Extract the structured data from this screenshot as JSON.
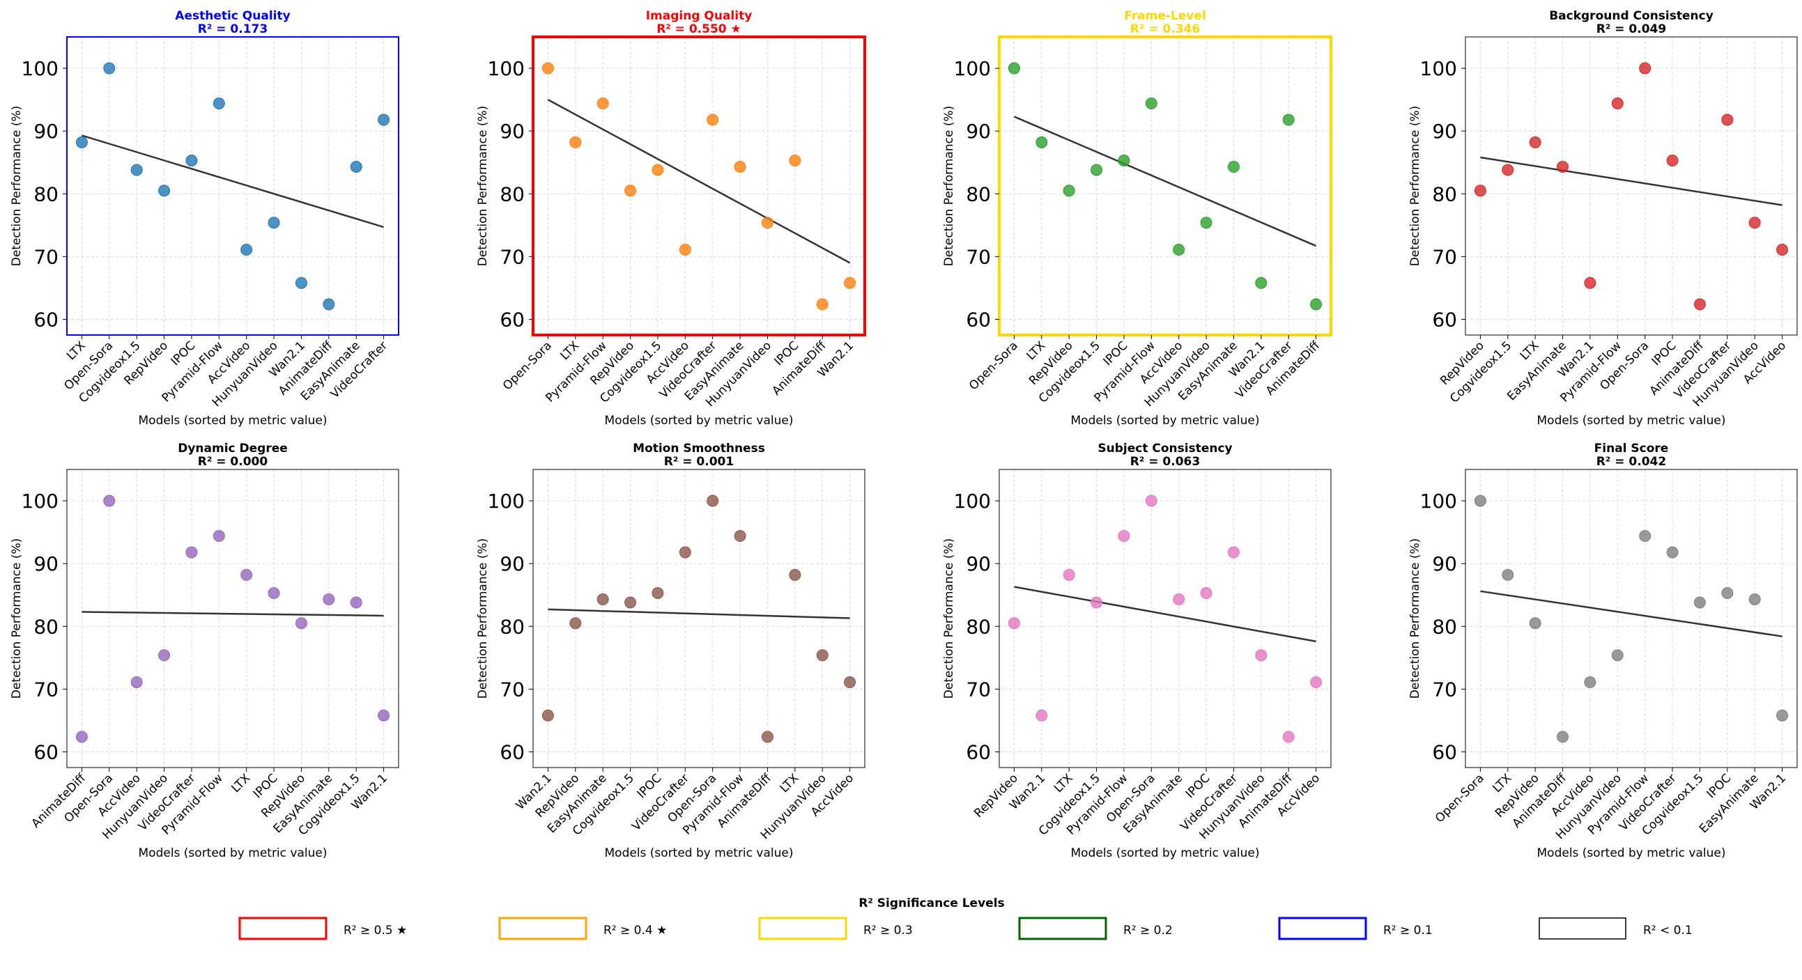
{
  "figure": {
    "legend": {
      "title": "R² Significance Levels",
      "items": [
        {
          "label": "R² ≥ 0.5 ★",
          "color": "#ff0000"
        },
        {
          "label": "R² ≥ 0.4 ★",
          "color": "#ffa500"
        },
        {
          "label": "R² ≥ 0.3",
          "color": "#ffd700"
        },
        {
          "label": "R² ≥ 0.2",
          "color": "#006400"
        },
        {
          "label": "R² ≥ 0.1",
          "color": "#0000ff"
        },
        {
          "label": "R² < 0.1",
          "color": "#000000"
        }
      ]
    }
  },
  "chart_data": [
    {
      "type": "scatter",
      "title": "Aesthetic Quality",
      "r2_label": "R² = 0.173",
      "title_color": "#0000ff",
      "frame_color": "#0000ff",
      "point_color": "#1f77b4",
      "xlabel": "Models (sorted by metric value)",
      "ylabel": "Detection Performance (%)",
      "ylim": [
        57.5,
        105
      ],
      "yticks": [
        60,
        70,
        80,
        90,
        100
      ],
      "categories": [
        "LTX",
        "Open-Sora",
        "Cogvideox1.5",
        "RepVideo",
        "IPOC",
        "Pyramid-Flow",
        "AccVideo",
        "HunyuanVideo",
        "Wan2.1",
        "AnimateDiff",
        "EasyAnimate",
        "VideoCrafter"
      ],
      "values": [
        88.2,
        100,
        83.8,
        80.5,
        85.3,
        94.4,
        71.1,
        75.4,
        65.8,
        62.4,
        84.3,
        91.8
      ],
      "trend": [
        89.3,
        74.7
      ]
    },
    {
      "type": "scatter",
      "title": "Imaging Quality",
      "r2_label": "R² = 0.550 ★",
      "title_color": "#ff0000",
      "frame_color": "#ff0000",
      "point_color": "#ff7f0e",
      "xlabel": "Models (sorted by metric value)",
      "ylabel": "Detection Performance (%)",
      "ylim": [
        57.5,
        105
      ],
      "yticks": [
        60,
        70,
        80,
        90,
        100
      ],
      "categories": [
        "Open-Sora",
        "LTX",
        "Pyramid-Flow",
        "RepVideo",
        "Cogvideox1.5",
        "AccVideo",
        "VideoCrafter",
        "EasyAnimate",
        "HunyuanVideo",
        "IPOC",
        "AnimateDiff",
        "Wan2.1"
      ],
      "values": [
        100,
        88.2,
        94.4,
        80.5,
        83.8,
        71.1,
        91.8,
        84.3,
        75.4,
        85.3,
        62.4,
        65.8
      ],
      "trend": [
        95.0,
        69.0
      ]
    },
    {
      "type": "scatter",
      "title": "Frame-Level",
      "r2_label": "R² = 0.346",
      "title_color": "#ffd700",
      "frame_color": "#ffd700",
      "point_color": "#2ca02c",
      "xlabel": "Models (sorted by metric value)",
      "ylabel": "Detection Performance (%)",
      "ylim": [
        57.5,
        105
      ],
      "yticks": [
        60,
        70,
        80,
        90,
        100
      ],
      "categories": [
        "Open-Sora",
        "LTX",
        "RepVideo",
        "Cogvideox1.5",
        "IPOC",
        "Pyramid-Flow",
        "AccVideo",
        "HunyuanVideo",
        "EasyAnimate",
        "Wan2.1",
        "VideoCrafter",
        "AnimateDiff"
      ],
      "values": [
        100,
        88.2,
        80.5,
        83.8,
        85.3,
        94.4,
        71.1,
        75.4,
        84.3,
        65.8,
        91.8,
        62.4
      ],
      "trend": [
        92.3,
        71.7
      ]
    },
    {
      "type": "scatter",
      "title": "Background Consistency",
      "r2_label": "R² = 0.049",
      "title_color": "#000000",
      "frame_color": "#000000",
      "point_color": "#d62728",
      "xlabel": "Models (sorted by metric value)",
      "ylabel": "Detection Performance (%)",
      "ylim": [
        57.5,
        105
      ],
      "yticks": [
        60,
        70,
        80,
        90,
        100
      ],
      "categories": [
        "RepVideo",
        "Cogvideox1.5",
        "LTX",
        "EasyAnimate",
        "Wan2.1",
        "Pyramid-Flow",
        "Open-Sora",
        "IPOC",
        "AnimateDiff",
        "VideoCrafter",
        "HunyuanVideo",
        "AccVideo"
      ],
      "values": [
        80.5,
        83.8,
        88.2,
        84.3,
        65.8,
        94.4,
        100,
        85.3,
        62.4,
        91.8,
        75.4,
        71.1
      ],
      "trend": [
        85.8,
        78.2
      ]
    },
    {
      "type": "scatter",
      "title": "Dynamic Degree",
      "r2_label": "R² = 0.000",
      "title_color": "#000000",
      "frame_color": "#000000",
      "point_color": "#9467bd",
      "xlabel": "Models (sorted by metric value)",
      "ylabel": "Detection Performance (%)",
      "ylim": [
        57.5,
        105
      ],
      "yticks": [
        60,
        70,
        80,
        90,
        100
      ],
      "categories": [
        "AnimateDiff",
        "Open-Sora",
        "AccVideo",
        "HunyuanVideo",
        "VideoCrafter",
        "Pyramid-Flow",
        "LTX",
        "IPOC",
        "RepVideo",
        "EasyAnimate",
        "Cogvideox1.5",
        "Wan2.1"
      ],
      "values": [
        62.4,
        100,
        71.1,
        75.4,
        91.8,
        94.4,
        88.2,
        85.3,
        80.5,
        84.3,
        83.8,
        65.8
      ],
      "trend": [
        82.3,
        81.7
      ]
    },
    {
      "type": "scatter",
      "title": "Motion Smoothness",
      "r2_label": "R² = 0.001",
      "title_color": "#000000",
      "frame_color": "#000000",
      "point_color": "#8c564b",
      "xlabel": "Models (sorted by metric value)",
      "ylabel": "Detection Performance (%)",
      "ylim": [
        57.5,
        105
      ],
      "yticks": [
        60,
        70,
        80,
        90,
        100
      ],
      "categories": [
        "Wan2.1",
        "RepVideo",
        "EasyAnimate",
        "Cogvideox1.5",
        "IPOC",
        "VideoCrafter",
        "Open-Sora",
        "Pyramid-Flow",
        "AnimateDiff",
        "LTX",
        "HunyuanVideo",
        "AccVideo"
      ],
      "values": [
        65.8,
        80.5,
        84.3,
        83.8,
        85.3,
        91.8,
        100,
        94.4,
        62.4,
        88.2,
        75.4,
        71.1
      ],
      "trend": [
        82.7,
        81.3
      ]
    },
    {
      "type": "scatter",
      "title": "Subject Consistency",
      "r2_label": "R² = 0.063",
      "title_color": "#000000",
      "frame_color": "#000000",
      "point_color": "#e377c2",
      "xlabel": "Models (sorted by metric value)",
      "ylabel": "Detection Performance (%)",
      "ylim": [
        57.5,
        105
      ],
      "yticks": [
        60,
        70,
        80,
        90,
        100
      ],
      "categories": [
        "RepVideo",
        "Wan2.1",
        "LTX",
        "Cogvideox1.5",
        "Pyramid-Flow",
        "Open-Sora",
        "EasyAnimate",
        "IPOC",
        "VideoCrafter",
        "HunyuanVideo",
        "AnimateDiff",
        "AccVideo"
      ],
      "values": [
        80.5,
        65.8,
        88.2,
        83.8,
        94.4,
        100,
        84.3,
        85.3,
        91.8,
        75.4,
        62.4,
        71.1
      ],
      "trend": [
        86.3,
        77.6
      ]
    },
    {
      "type": "scatter",
      "title": "Final Score",
      "r2_label": "R² = 0.042",
      "title_color": "#000000",
      "frame_color": "#000000",
      "point_color": "#7f7f7f",
      "xlabel": "Models (sorted by metric value)",
      "ylabel": "Detection Performance (%)",
      "ylim": [
        57.5,
        105
      ],
      "yticks": [
        60,
        70,
        80,
        90,
        100
      ],
      "categories": [
        "Open-Sora",
        "LTX",
        "RepVideo",
        "AnimateDiff",
        "AccVideo",
        "HunyuanVideo",
        "Pyramid-Flow",
        "VideoCrafter",
        "Cogvideox1.5",
        "IPOC",
        "EasyAnimate",
        "Wan2.1"
      ],
      "values": [
        100,
        88.2,
        80.5,
        62.4,
        71.1,
        75.4,
        94.4,
        91.8,
        83.8,
        85.3,
        84.3,
        65.8
      ],
      "trend": [
        85.6,
        78.4
      ]
    }
  ]
}
